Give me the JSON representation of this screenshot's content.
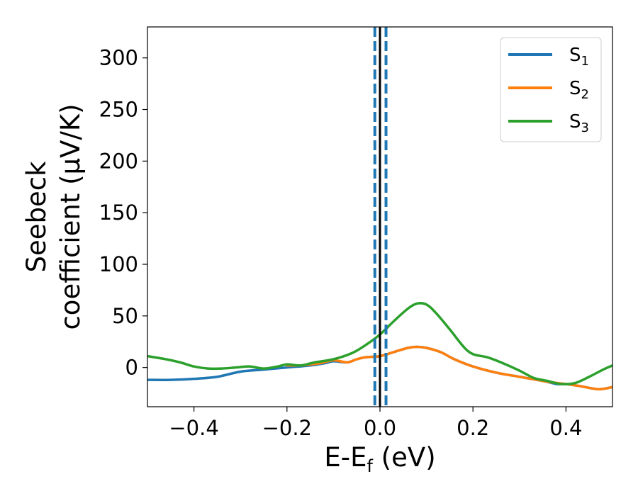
{
  "chart_data": {
    "type": "line",
    "title": "",
    "xlabel": "E-E_f (eV)",
    "ylabel": "Seebeck coefficient (μV/K)",
    "xlabel_parts": {
      "main": "E-E",
      "sub": "f",
      "rest": " (eV)"
    },
    "ylabel_lines": [
      "Seebeck",
      "coefficient  (μV/K)"
    ],
    "xlim": [
      -0.5,
      0.5
    ],
    "ylim": [
      -38,
      330
    ],
    "xticks": [
      -0.4,
      -0.2,
      0.0,
      0.2,
      0.4
    ],
    "xtick_labels": [
      "−0.4",
      "−0.2",
      "0.0",
      "0.2",
      "0.4"
    ],
    "yticks": [
      0,
      50,
      100,
      150,
      200,
      250,
      300
    ],
    "ytick_labels": [
      "0",
      "50",
      "100",
      "150",
      "200",
      "250",
      "300"
    ],
    "grid": false,
    "legend_position": "top-right",
    "vertical_lines": [
      {
        "x": 0.0,
        "style": "solid",
        "color": "#000000"
      },
      {
        "x": -0.011,
        "style": "dashed",
        "color": "#1f77b4"
      },
      {
        "x": 0.013,
        "style": "dashed",
        "color": "#1f77b4"
      }
    ],
    "series": [
      {
        "name": "S1",
        "label_main": "S",
        "label_sub": "1",
        "color": "#1f77b4",
        "points": [
          [
            -0.5,
            -12
          ],
          [
            -0.45,
            -12
          ],
          [
            -0.4,
            -11
          ],
          [
            -0.35,
            -9
          ],
          [
            -0.3,
            -4
          ],
          [
            -0.25,
            -2
          ],
          [
            -0.2,
            0
          ],
          [
            -0.15,
            2
          ],
          [
            -0.12,
            4
          ],
          [
            -0.1,
            6
          ],
          [
            -0.07,
            5
          ],
          [
            -0.05,
            8
          ],
          [
            -0.03,
            10
          ],
          [
            0,
            11
          ],
          [
            0.03,
            15
          ],
          [
            0.06,
            19
          ],
          [
            0.08,
            20
          ],
          [
            0.1,
            19
          ],
          [
            0.13,
            15
          ],
          [
            0.16,
            8
          ],
          [
            0.2,
            1
          ],
          [
            0.25,
            -5
          ],
          [
            0.3,
            -9
          ],
          [
            0.35,
            -13
          ],
          [
            0.38,
            -16
          ],
          [
            0.4,
            -16
          ],
          [
            0.43,
            -18
          ],
          [
            0.47,
            -21
          ],
          [
            0.5,
            -19
          ]
        ]
      },
      {
        "name": "S2",
        "label_main": "S",
        "label_sub": "2",
        "color": "#ff7f0e",
        "points": [
          [
            -0.2,
            2
          ],
          [
            -0.17,
            2
          ],
          [
            -0.15,
            3
          ],
          [
            -0.13,
            4
          ],
          [
            -0.1,
            7
          ],
          [
            -0.07,
            5
          ],
          [
            -0.05,
            8
          ],
          [
            -0.03,
            10
          ],
          [
            0,
            11
          ],
          [
            0.03,
            15
          ],
          [
            0.06,
            19
          ],
          [
            0.08,
            20
          ],
          [
            0.1,
            19
          ],
          [
            0.13,
            15
          ],
          [
            0.16,
            8
          ],
          [
            0.2,
            1
          ],
          [
            0.25,
            -5
          ],
          [
            0.3,
            -9
          ],
          [
            0.35,
            -13
          ],
          [
            0.38,
            -15
          ],
          [
            0.4,
            -16
          ],
          [
            0.43,
            -18
          ],
          [
            0.47,
            -21
          ],
          [
            0.5,
            -19
          ]
        ]
      },
      {
        "name": "S3",
        "label_main": "S",
        "label_sub": "3",
        "color": "#2ca02c",
        "points": [
          [
            -0.5,
            11
          ],
          [
            -0.46,
            8
          ],
          [
            -0.43,
            5
          ],
          [
            -0.4,
            1
          ],
          [
            -0.37,
            -1
          ],
          [
            -0.34,
            -1
          ],
          [
            -0.31,
            0
          ],
          [
            -0.28,
            1
          ],
          [
            -0.25,
            -1
          ],
          [
            -0.22,
            1
          ],
          [
            -0.2,
            3
          ],
          [
            -0.17,
            2
          ],
          [
            -0.14,
            5
          ],
          [
            -0.1,
            8
          ],
          [
            -0.06,
            14
          ],
          [
            -0.03,
            22
          ],
          [
            0,
            32
          ],
          [
            0.03,
            45
          ],
          [
            0.06,
            57
          ],
          [
            0.08,
            62
          ],
          [
            0.1,
            61
          ],
          [
            0.12,
            53
          ],
          [
            0.15,
            37
          ],
          [
            0.18,
            20
          ],
          [
            0.2,
            13
          ],
          [
            0.23,
            10
          ],
          [
            0.26,
            5
          ],
          [
            0.3,
            -3
          ],
          [
            0.33,
            -10
          ],
          [
            0.36,
            -13
          ],
          [
            0.39,
            -16
          ],
          [
            0.42,
            -15
          ],
          [
            0.45,
            -9
          ],
          [
            0.48,
            -2
          ],
          [
            0.5,
            2
          ]
        ]
      }
    ]
  }
}
